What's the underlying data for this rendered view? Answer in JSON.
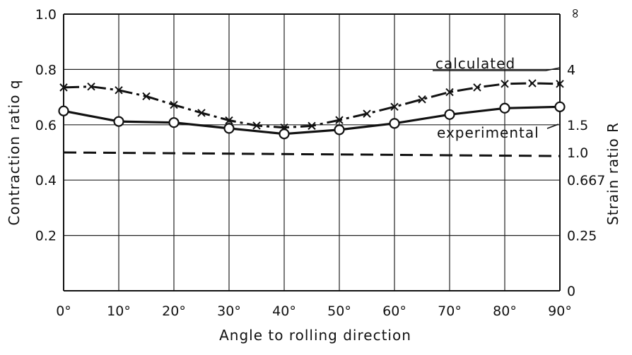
{
  "chart_data": {
    "type": "line",
    "xlabel": "Angle to rolling direction",
    "ylabel": "Contraction ratio  q",
    "y2label": "Strain ratio  R",
    "x_ticks": [
      "0°",
      "10°",
      "20°",
      "30°",
      "40°",
      "50°",
      "60°",
      "70°",
      "80°",
      "90°"
    ],
    "xlim": [
      0,
      90
    ],
    "ylim": [
      0,
      1.0
    ],
    "y_ticks": [
      "0.2",
      "0.4",
      "0.6",
      "0.8",
      "1.0"
    ],
    "y_tick_values": [
      0.2,
      0.4,
      0.6,
      0.8,
      1.0
    ],
    "y2_ticks": [
      {
        "label": "0",
        "q": 0.0
      },
      {
        "label": "0.25",
        "q": 0.2
      },
      {
        "label": "0.667",
        "q": 0.4
      },
      {
        "label": "1.0",
        "q": 0.5
      },
      {
        "label": "1.5",
        "q": 0.6
      },
      {
        "label": "4",
        "q": 0.8
      },
      {
        "label": "∞",
        "q": 1.0
      }
    ],
    "grid": true,
    "series": [
      {
        "name": "calculated",
        "style": "dash-dot with x markers",
        "x": [
          0,
          5,
          10,
          15,
          20,
          25,
          30,
          35,
          40,
          45,
          50,
          55,
          60,
          65,
          70,
          75,
          80,
          85,
          90
        ],
        "y": [
          0.735,
          0.738,
          0.725,
          0.703,
          0.672,
          0.643,
          0.616,
          0.597,
          0.59,
          0.596,
          0.617,
          0.64,
          0.665,
          0.692,
          0.718,
          0.735,
          0.748,
          0.75,
          0.748
        ]
      },
      {
        "name": "experimental",
        "style": "solid with open circle markers",
        "x": [
          0,
          10,
          20,
          30,
          40,
          50,
          60,
          70,
          80,
          90
        ],
        "y": [
          0.65,
          0.612,
          0.608,
          0.587,
          0.567,
          0.582,
          0.605,
          0.637,
          0.66,
          0.665
        ]
      },
      {
        "name": "",
        "style": "dashed (R = 1.0 reference)",
        "x": [
          0,
          90
        ],
        "y": [
          0.5,
          0.487
        ]
      }
    ]
  }
}
